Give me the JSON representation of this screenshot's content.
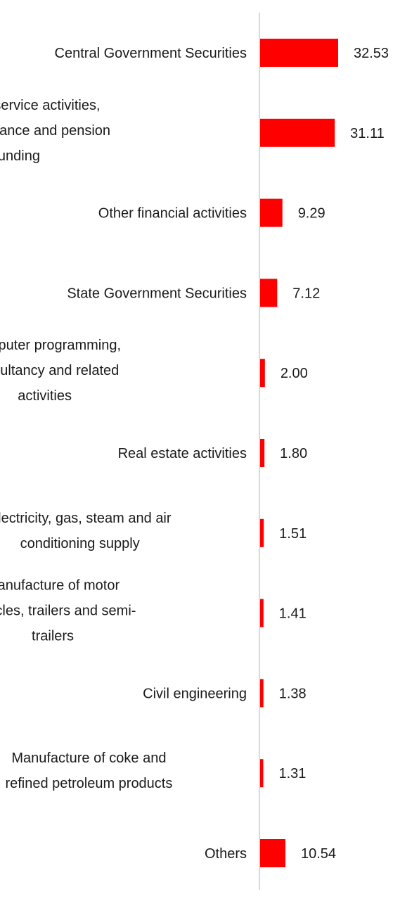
{
  "chart_data": {
    "type": "bar",
    "orientation": "horizontal",
    "categories": [
      "Central Government Securities",
      "Financial service activities, except insurance and pension funding",
      "Other financial activities",
      "State Government Securities",
      "Computer programming, consultancy and related activities",
      "Real estate activities",
      "Electricity, gas, steam and air conditioning supply",
      "Manufacture of motor vehicles, trailers and semi-trailers",
      "Civil engineering",
      "Manufacture of coke and refined petroleum products",
      "Others"
    ],
    "category_lines": [
      [
        "Central Government Securities"
      ],
      [
        "Financial service activities,",
        "except insurance and pension",
        "funding"
      ],
      [
        "Other financial activities"
      ],
      [
        "State Government Securities"
      ],
      [
        "Computer programming,",
        "consultancy and related",
        "activities"
      ],
      [
        "Real estate activities"
      ],
      [
        "Electricity, gas, steam and air",
        "conditioning supply"
      ],
      [
        "Manufacture of motor",
        "vehicles, trailers and semi-",
        "trailers"
      ],
      [
        "Civil engineering"
      ],
      [
        "Manufacture of coke and",
        "refined petroleum products"
      ],
      [
        "Others"
      ]
    ],
    "values": [
      32.53,
      31.11,
      9.29,
      7.12,
      2.0,
      1.8,
      1.51,
      1.41,
      1.38,
      1.31,
      10.54
    ],
    "value_labels": [
      "32.53",
      "31.11",
      "9.29",
      "7.12",
      "2.00",
      "1.80",
      "1.51",
      "1.41",
      "1.38",
      "1.31",
      "10.54"
    ],
    "bar_color": "#ff0000",
    "axis_color": "#d9d9d9",
    "grid": false,
    "legend": "none"
  }
}
